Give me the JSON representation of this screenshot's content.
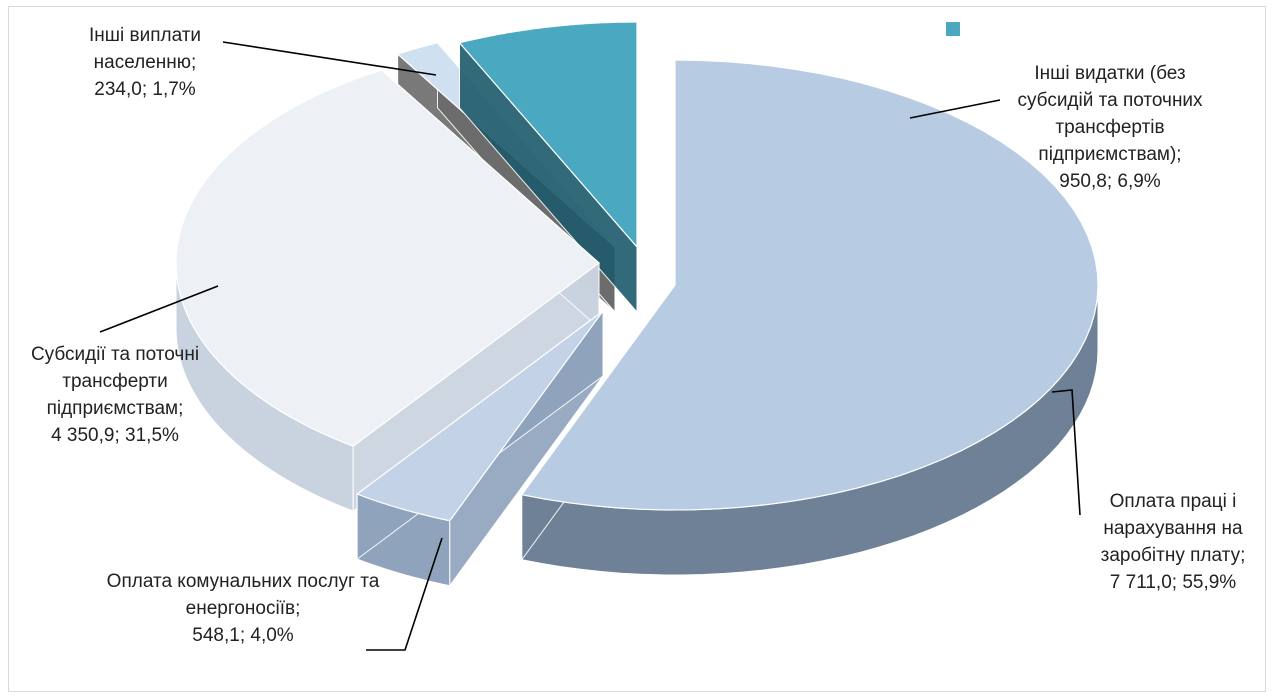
{
  "chart_data": {
    "type": "pie",
    "title": "",
    "style": "3d-exploded",
    "slices": [
      {
        "name_lines": [
          "Оплата праці і",
          "нарахування на",
          "заробітну плату;",
          "7 711,0; 55,9%"
        ],
        "value": 7711.0,
        "percent": 55.9
      },
      {
        "name_lines": [
          "Оплата комунальних послуг та",
          "енергоносіїв;",
          "548,1; 4,0%"
        ],
        "value": 548.1,
        "percent": 4.0
      },
      {
        "name_lines": [
          "Субсидії та поточні",
          "трансферти",
          "підприємствам;",
          "4  350,9;  31,5%"
        ],
        "value": 4350.9,
        "percent": 31.5
      },
      {
        "name_lines": [
          "Інші виплати",
          "населенню;",
          "234,0; 1,7%"
        ],
        "value": 234.0,
        "percent": 1.7
      },
      {
        "name_lines": [
          "Інші видатки (без",
          "субсидій та поточних",
          "трансфертів",
          "підприємствам);",
          "950,8; 6,9%"
        ],
        "value": 950.8,
        "percent": 6.9
      }
    ],
    "legend": {
      "placement": "top-right",
      "swatch_color": "#4aa8c0"
    },
    "colors": {
      "wages_top": "#b7cbe3",
      "wages_side": "#6f8196",
      "utilities_top": "#c3d2e6",
      "utilities_side": "#8fa3bd",
      "subsidies_top": "#edf1f6",
      "subsidies_side": "#c9d2df",
      "payments_top": "#cfe0f0",
      "payments_side": "#6b6b6b",
      "other_top": "#4aa8c0",
      "other_side": "#1e5a6b"
    }
  }
}
